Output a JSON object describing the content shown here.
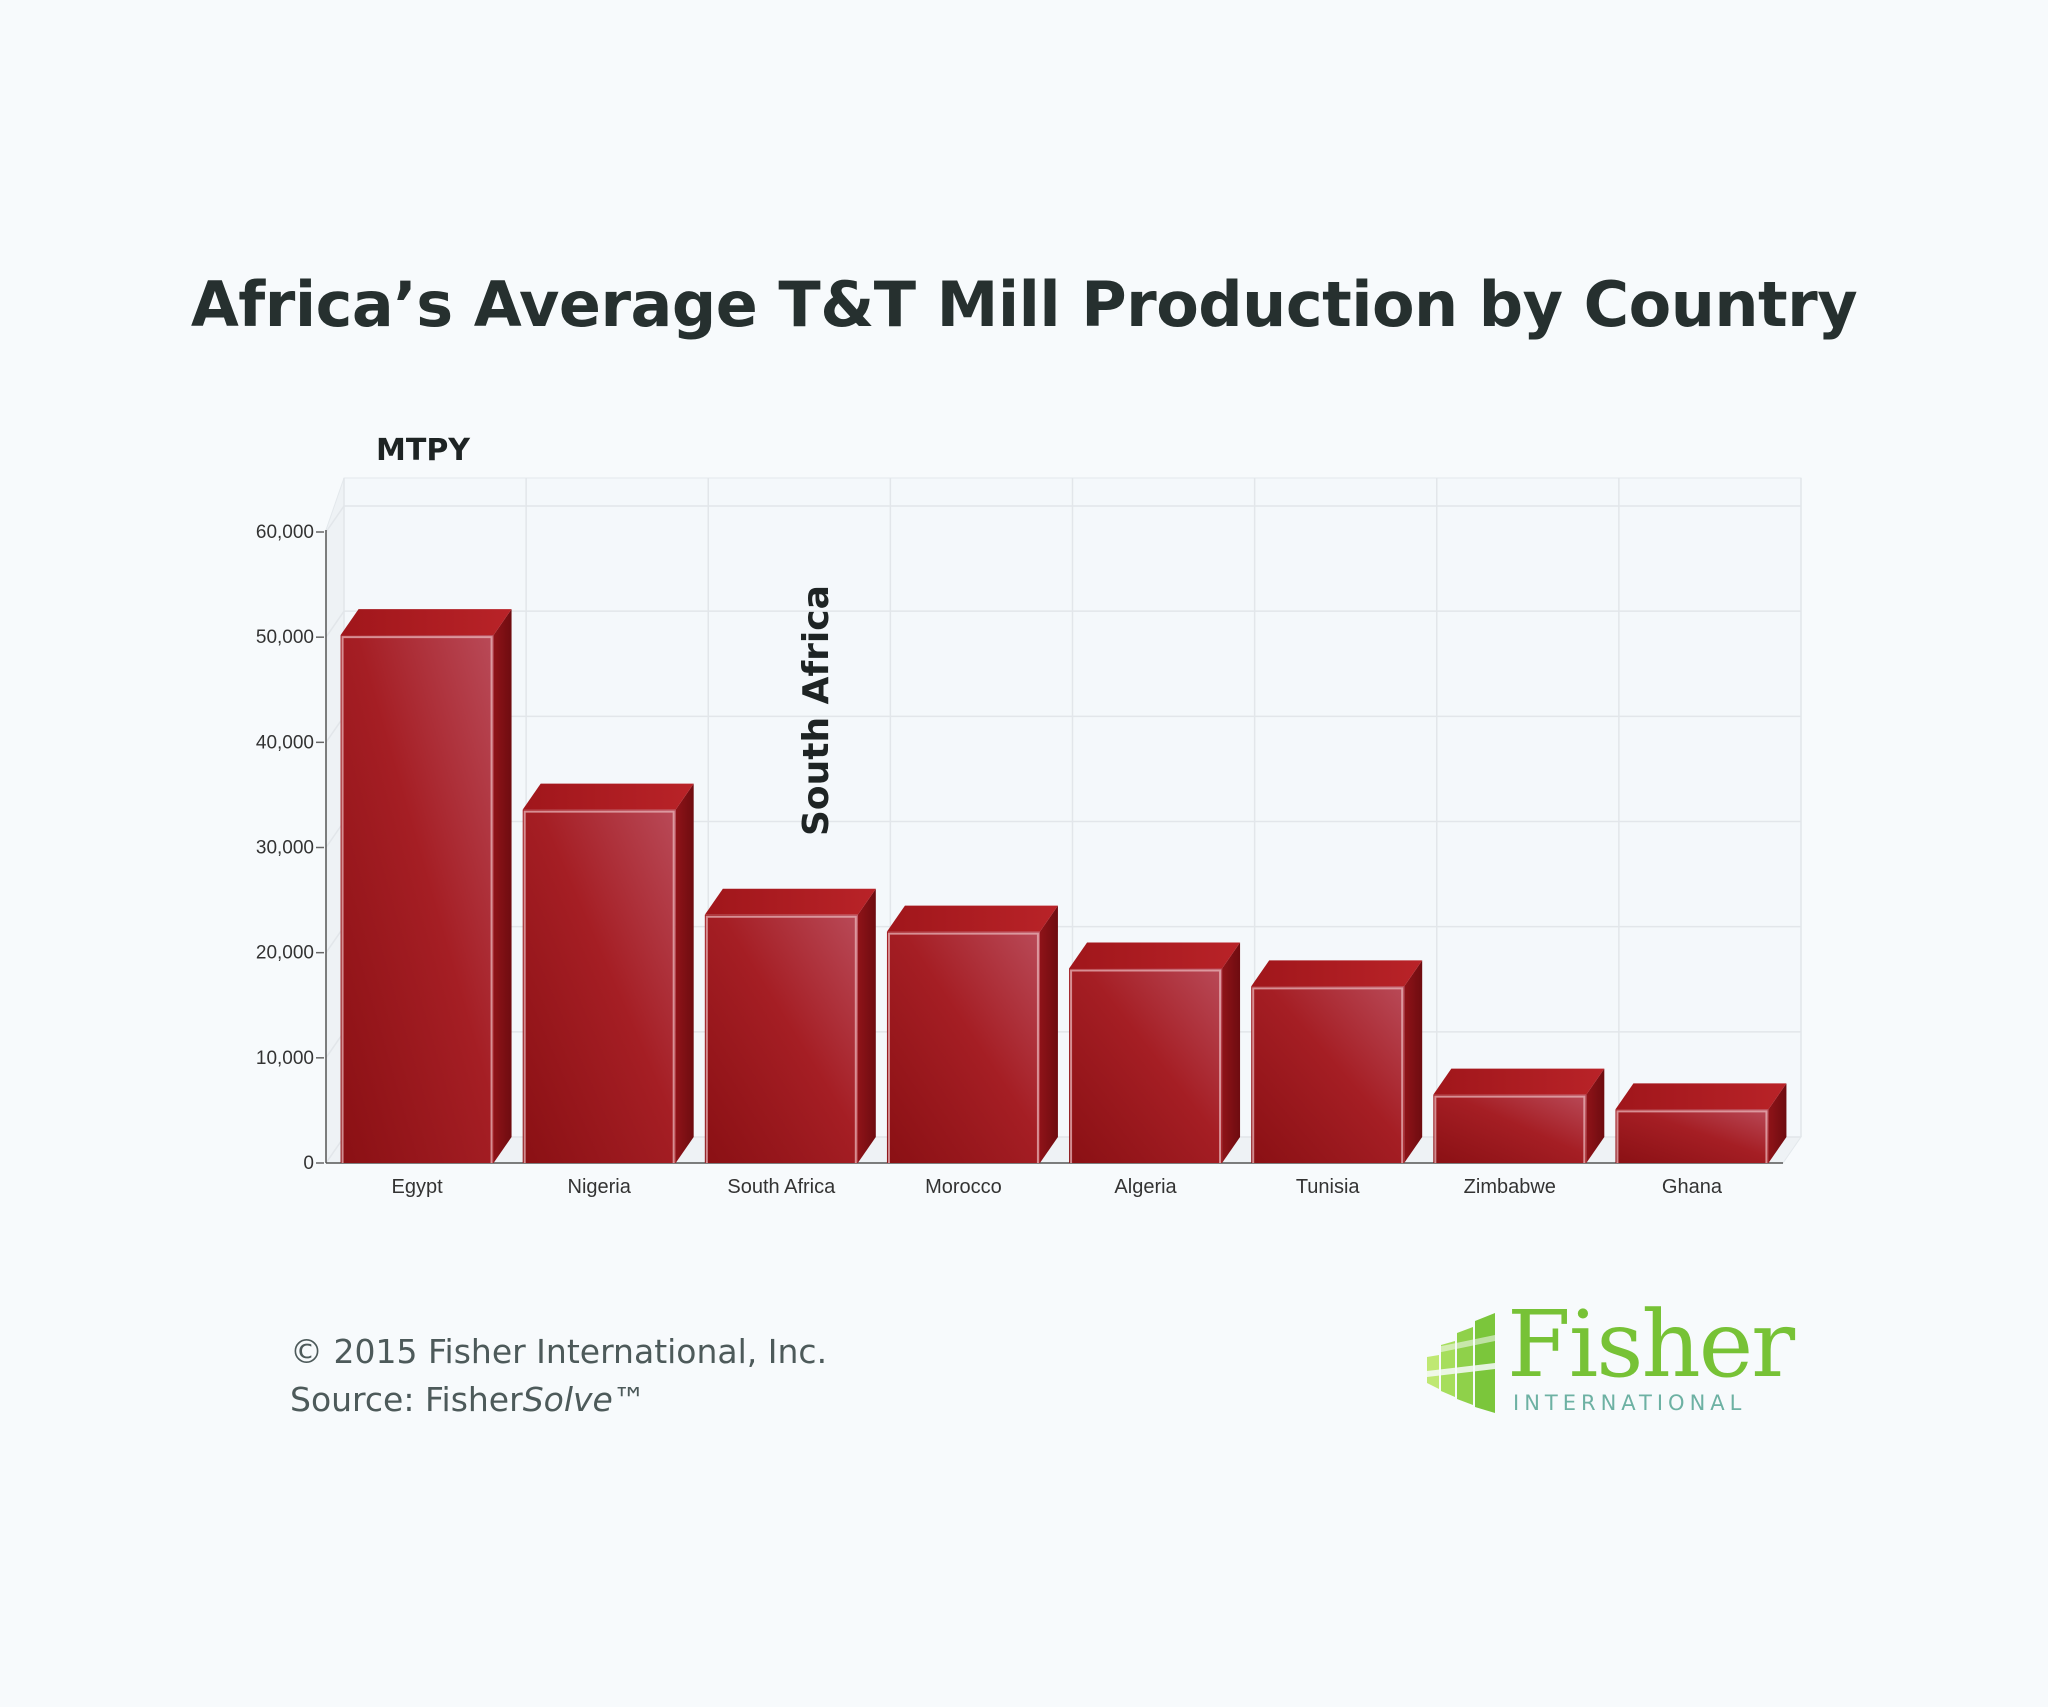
{
  "title": "Africa’s Average T&T Mill Production by Country",
  "unit_label": "MTPY",
  "annotation": "South Africa",
  "footer": {
    "copyright": "© 2015 Fisher International, Inc.",
    "source_prefix": "Source: Fisher",
    "source_italic": "Solve",
    "source_tm": "™"
  },
  "logo": {
    "word": "Fisher",
    "sub": "INTERNATIONAL"
  },
  "colors": {
    "bar": "#9c1a1f",
    "bar_top": "#b11f24",
    "bar_side": "#7a0f13",
    "logo_green": "#77c236"
  },
  "chart_data": {
    "type": "bar",
    "categories": [
      "Egypt",
      "Nigeria",
      "South Africa",
      "Morocco",
      "Algeria",
      "Tunisia",
      "Zimbabwe",
      "Ghana"
    ],
    "values": [
      50200,
      33600,
      23600,
      22000,
      18500,
      16800,
      6500,
      5100
    ],
    "ylim": [
      0,
      60000
    ],
    "yticks": [
      0,
      10000,
      20000,
      30000,
      40000,
      50000,
      60000
    ],
    "ytick_labels": [
      "0",
      "10,000",
      "20,000",
      "30,000",
      "40,000",
      "50,000",
      "60,000"
    ],
    "ylabel": "MTPY",
    "xlabel": "",
    "grid": true,
    "style": "3d"
  }
}
